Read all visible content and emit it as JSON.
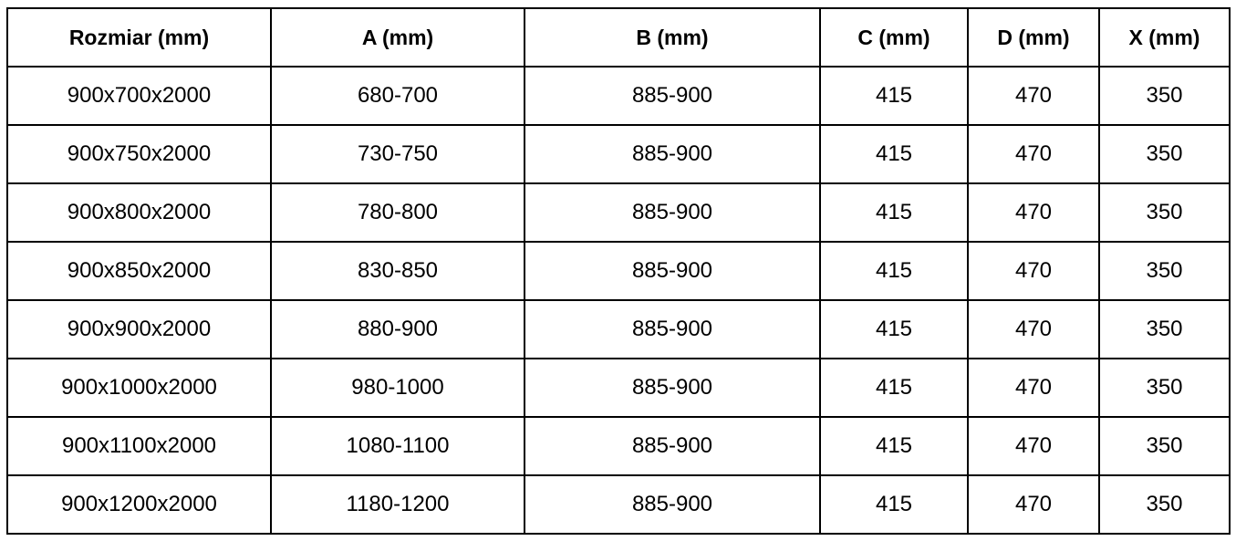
{
  "table": {
    "headers": [
      "Rozmiar (mm)",
      "A (mm)",
      "B (mm)",
      "C (mm)",
      "D (mm)",
      "X (mm)"
    ],
    "rows": [
      [
        "900x700x2000",
        "680-700",
        "885-900",
        "415",
        "470",
        "350"
      ],
      [
        "900x750x2000",
        "730-750",
        "885-900",
        "415",
        "470",
        "350"
      ],
      [
        "900x800x2000",
        "780-800",
        "885-900",
        "415",
        "470",
        "350"
      ],
      [
        "900x850x2000",
        "830-850",
        "885-900",
        "415",
        "470",
        "350"
      ],
      [
        "900x900x2000",
        "880-900",
        "885-900",
        "415",
        "470",
        "350"
      ],
      [
        "900x1000x2000",
        "980-1000",
        "885-900",
        "415",
        "470",
        "350"
      ],
      [
        "900x1100x2000",
        "1080-1100",
        "885-900",
        "415",
        "470",
        "350"
      ],
      [
        "900x1200x2000",
        "1180-1200",
        "885-900",
        "415",
        "470",
        "350"
      ]
    ]
  }
}
